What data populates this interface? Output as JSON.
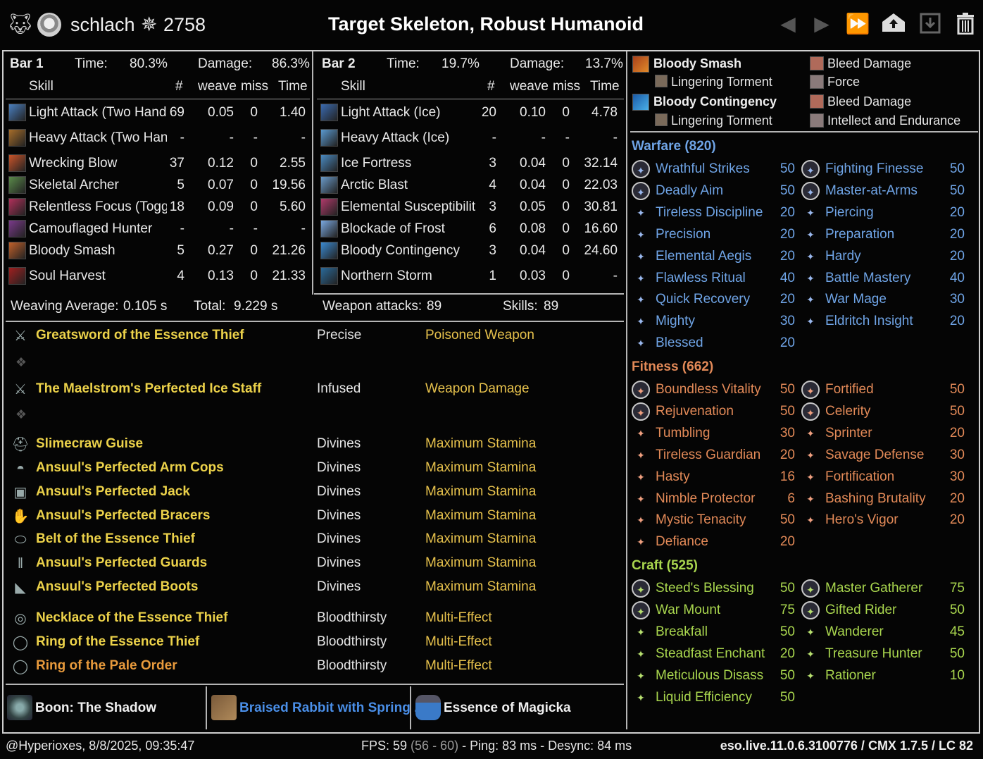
{
  "header": {
    "player_name": "schlach",
    "champion_points": "2758",
    "title": "Target Skeleton, Robust Humanoid"
  },
  "icons": {
    "app_logo": "wolf-head-icon",
    "player_icon": "skull-icon",
    "cp_icon": "champion-star-icon",
    "prev": "arrow-left-icon",
    "next": "arrow-right-icon",
    "last": "double-arrow-right-icon",
    "save": "upload-house-icon",
    "load": "download-icon",
    "delete": "trash-icon"
  },
  "bar1": {
    "title": "Bar 1",
    "time_label": "Time:",
    "time": "80.3%",
    "damage_label": "Damage:",
    "damage": "86.3%",
    "columns": [
      "Skill",
      "#",
      "weave",
      "miss",
      "Time"
    ],
    "rows": [
      {
        "skill": "Light Attack (Two Hand",
        "count": "69",
        "weave": "0.05",
        "miss": "0",
        "time": "1.40",
        "color": "#4a7fbf"
      },
      {
        "skill": "Heavy Attack (Two Han",
        "count": "-",
        "weave": "-",
        "miss": "-",
        "time": "-",
        "color": "#a66d2a"
      },
      {
        "skill": "Wrecking Blow",
        "count": "37",
        "weave": "0.12",
        "miss": "0",
        "time": "2.55",
        "color": "#c9542a"
      },
      {
        "skill": "Skeletal Archer",
        "count": "5",
        "weave": "0.07",
        "miss": "0",
        "time": "19.56",
        "color": "#5a8a4a"
      },
      {
        "skill": "Relentless Focus (Togg",
        "count": "18",
        "weave": "0.09",
        "miss": "0",
        "time": "5.60",
        "color": "#b0305a"
      },
      {
        "skill": "Camouflaged Hunter",
        "count": "-",
        "weave": "-",
        "miss": "-",
        "time": "-",
        "color": "#7a3a8a"
      },
      {
        "skill": "Bloody Smash",
        "count": "5",
        "weave": "0.27",
        "miss": "0",
        "time": "21.26",
        "color": "#c0602a"
      },
      {
        "skill": "Soul Harvest",
        "count": "4",
        "weave": "0.13",
        "miss": "0",
        "time": "21.33",
        "color": "#a02020"
      }
    ]
  },
  "bar2": {
    "title": "Bar 2",
    "time_label": "Time:",
    "time": "19.7%",
    "damage_label": "Damage:",
    "damage": "13.7%",
    "columns": [
      "Skill",
      "#",
      "weave",
      "miss",
      "Time"
    ],
    "rows": [
      {
        "skill": "Light Attack (Ice)",
        "count": "20",
        "weave": "0.10",
        "miss": "0",
        "time": "4.78",
        "color": "#3a6ab0"
      },
      {
        "skill": "Heavy Attack (Ice)",
        "count": "-",
        "weave": "-",
        "miss": "-",
        "time": "-",
        "color": "#5a9ad0"
      },
      {
        "skill": "Ice Fortress",
        "count": "3",
        "weave": "0.04",
        "miss": "0",
        "time": "32.14",
        "color": "#4a8ac0"
      },
      {
        "skill": "Arctic Blast",
        "count": "4",
        "weave": "0.04",
        "miss": "0",
        "time": "22.03",
        "color": "#6a9ac8"
      },
      {
        "skill": "Elemental Susceptibilit",
        "count": "3",
        "weave": "0.05",
        "miss": "0",
        "time": "30.81",
        "color": "#b03a6a"
      },
      {
        "skill": "Blockade of Frost",
        "count": "6",
        "weave": "0.08",
        "miss": "0",
        "time": "16.60",
        "color": "#7aa8e0"
      },
      {
        "skill": "Bloody Contingency",
        "count": "3",
        "weave": "0.04",
        "miss": "0",
        "time": "24.60",
        "color": "#3a8ad0"
      },
      {
        "skill": "Northern Storm",
        "count": "1",
        "weave": "0.03",
        "miss": "0",
        "time": "-",
        "color": "#2a6a9a"
      }
    ]
  },
  "stats": {
    "weaving_label": "Weaving Average:",
    "weaving": "0.105 s",
    "total_label": "Total:",
    "total": "9.229 s",
    "weapon_label": "Weapon attacks:",
    "weapon": "89",
    "skills_label": "Skills:",
    "skills": "89"
  },
  "gear": [
    {
      "name": "Greatsword of the Essence Thief",
      "trait": "Precise",
      "enchant": "Poisoned Weapon",
      "icon": "sword-icon"
    },
    {
      "name": "The Maelstrom's Perfected Ice Staff",
      "trait": "Infused",
      "enchant": "Weapon Damage",
      "icon": "staff-icon"
    },
    {
      "name": "Slimecraw Guise",
      "trait": "Divines",
      "enchant": "Maximum Stamina",
      "icon": "helmet-icon"
    },
    {
      "name": "Ansuul's Perfected Arm Cops",
      "trait": "Divines",
      "enchant": "Maximum Stamina",
      "icon": "shoulder-icon"
    },
    {
      "name": "Ansuul's Perfected Jack",
      "trait": "Divines",
      "enchant": "Maximum Stamina",
      "icon": "chest-icon"
    },
    {
      "name": "Ansuul's Perfected Bracers",
      "trait": "Divines",
      "enchant": "Maximum Stamina",
      "icon": "gloves-icon"
    },
    {
      "name": "Belt of the Essence Thief",
      "trait": "Divines",
      "enchant": "Maximum Stamina",
      "icon": "belt-icon"
    },
    {
      "name": "Ansuul's Perfected Guards",
      "trait": "Divines",
      "enchant": "Maximum Stamina",
      "icon": "legs-icon"
    },
    {
      "name": "Ansuul's Perfected Boots",
      "trait": "Divines",
      "enchant": "Maximum Stamina",
      "icon": "boots-icon"
    },
    {
      "name": "Necklace of the Essence Thief",
      "trait": "Bloodthirsty",
      "enchant": "Multi-Effect",
      "icon": "necklace-icon"
    },
    {
      "name": "Ring of the Essence Thief",
      "trait": "Bloodthirsty",
      "enchant": "Multi-Effect",
      "icon": "ring-icon"
    },
    {
      "name": "Ring of the Pale Order",
      "trait": "Bloodthirsty",
      "enchant": "Multi-Effect",
      "icon": "ring-icon",
      "name_color": "#e89a3c"
    }
  ],
  "buffs": {
    "boon": "Boon: The Shadow",
    "food": "Braised Rabbit with Spring ...",
    "drink": "Essence of Magicka"
  },
  "sets": {
    "line1_ability": "Bloody Smash",
    "line1_sub": "Lingering Torment",
    "line1_right": "Bleed Damage",
    "line1_right_sub": "Force",
    "line2_ability": "Bloody Contingency",
    "line2_sub": "Lingering Torment",
    "line2_right": "Bleed Damage",
    "line2_right_sub": "Intellect and Endurance"
  },
  "champion": {
    "warfare_title": "Warfare (820)",
    "warfare": [
      {
        "name": "Wrathful Strikes",
        "pts": "50",
        "slot": true
      },
      {
        "name": "Fighting Finesse",
        "pts": "50",
        "slot": true
      },
      {
        "name": "Deadly Aim",
        "pts": "50",
        "slot": true
      },
      {
        "name": "Master-at-Arms",
        "pts": "50",
        "slot": true
      },
      {
        "name": "Tireless Discipline",
        "pts": "20"
      },
      {
        "name": "Piercing",
        "pts": "20"
      },
      {
        "name": "Precision",
        "pts": "20"
      },
      {
        "name": "Preparation",
        "pts": "20"
      },
      {
        "name": "Elemental Aegis",
        "pts": "20"
      },
      {
        "name": "Hardy",
        "pts": "20"
      },
      {
        "name": "Flawless Ritual",
        "pts": "40"
      },
      {
        "name": "Battle Mastery",
        "pts": "40"
      },
      {
        "name": "Quick Recovery",
        "pts": "20"
      },
      {
        "name": "War Mage",
        "pts": "30"
      },
      {
        "name": "Mighty",
        "pts": "30"
      },
      {
        "name": "Eldritch Insight",
        "pts": "20"
      },
      {
        "name": "Blessed",
        "pts": "20"
      }
    ],
    "fitness_title": "Fitness (662)",
    "fitness": [
      {
        "name": "Boundless Vitality",
        "pts": "50",
        "slot": true
      },
      {
        "name": "Fortified",
        "pts": "50",
        "slot": true
      },
      {
        "name": "Rejuvenation",
        "pts": "50",
        "slot": true
      },
      {
        "name": "Celerity",
        "pts": "50",
        "slot": true
      },
      {
        "name": "Tumbling",
        "pts": "30"
      },
      {
        "name": "Sprinter",
        "pts": "20"
      },
      {
        "name": "Tireless Guardian",
        "pts": "20"
      },
      {
        "name": "Savage Defense",
        "pts": "30"
      },
      {
        "name": "Hasty",
        "pts": "16"
      },
      {
        "name": "Fortification",
        "pts": "30"
      },
      {
        "name": "Nimble Protector",
        "pts": "6"
      },
      {
        "name": "Bashing Brutality",
        "pts": "20"
      },
      {
        "name": "Mystic Tenacity",
        "pts": "50"
      },
      {
        "name": "Hero's Vigor",
        "pts": "20"
      },
      {
        "name": "Defiance",
        "pts": "20"
      }
    ],
    "craft_title": "Craft (525)",
    "craft": [
      {
        "name": "Steed's Blessing",
        "pts": "50",
        "slot": true
      },
      {
        "name": "Master Gatherer",
        "pts": "75",
        "slot": true
      },
      {
        "name": "War Mount",
        "pts": "75",
        "slot": true
      },
      {
        "name": "Gifted Rider",
        "pts": "50",
        "slot": true
      },
      {
        "name": "Breakfall",
        "pts": "50"
      },
      {
        "name": "Wanderer",
        "pts": "45"
      },
      {
        "name": "Steadfast Enchant",
        "pts": "20"
      },
      {
        "name": "Treasure Hunter",
        "pts": "50"
      },
      {
        "name": "Meticulous Disass",
        "pts": "50"
      },
      {
        "name": "Rationer",
        "pts": "10"
      },
      {
        "name": "Liquid Efficiency",
        "pts": "50"
      }
    ]
  },
  "footer": {
    "left": "@Hyperioxes, 8/8/2025, 09:35:47",
    "fps_label": "FPS: 59",
    "fps_range": "(56 - 60)",
    "ping": "- Ping: 83 ms - Desync: 84 ms",
    "version": "eso.live.11.0.6.3100776 / CMX 1.7.5 / LC 82"
  }
}
